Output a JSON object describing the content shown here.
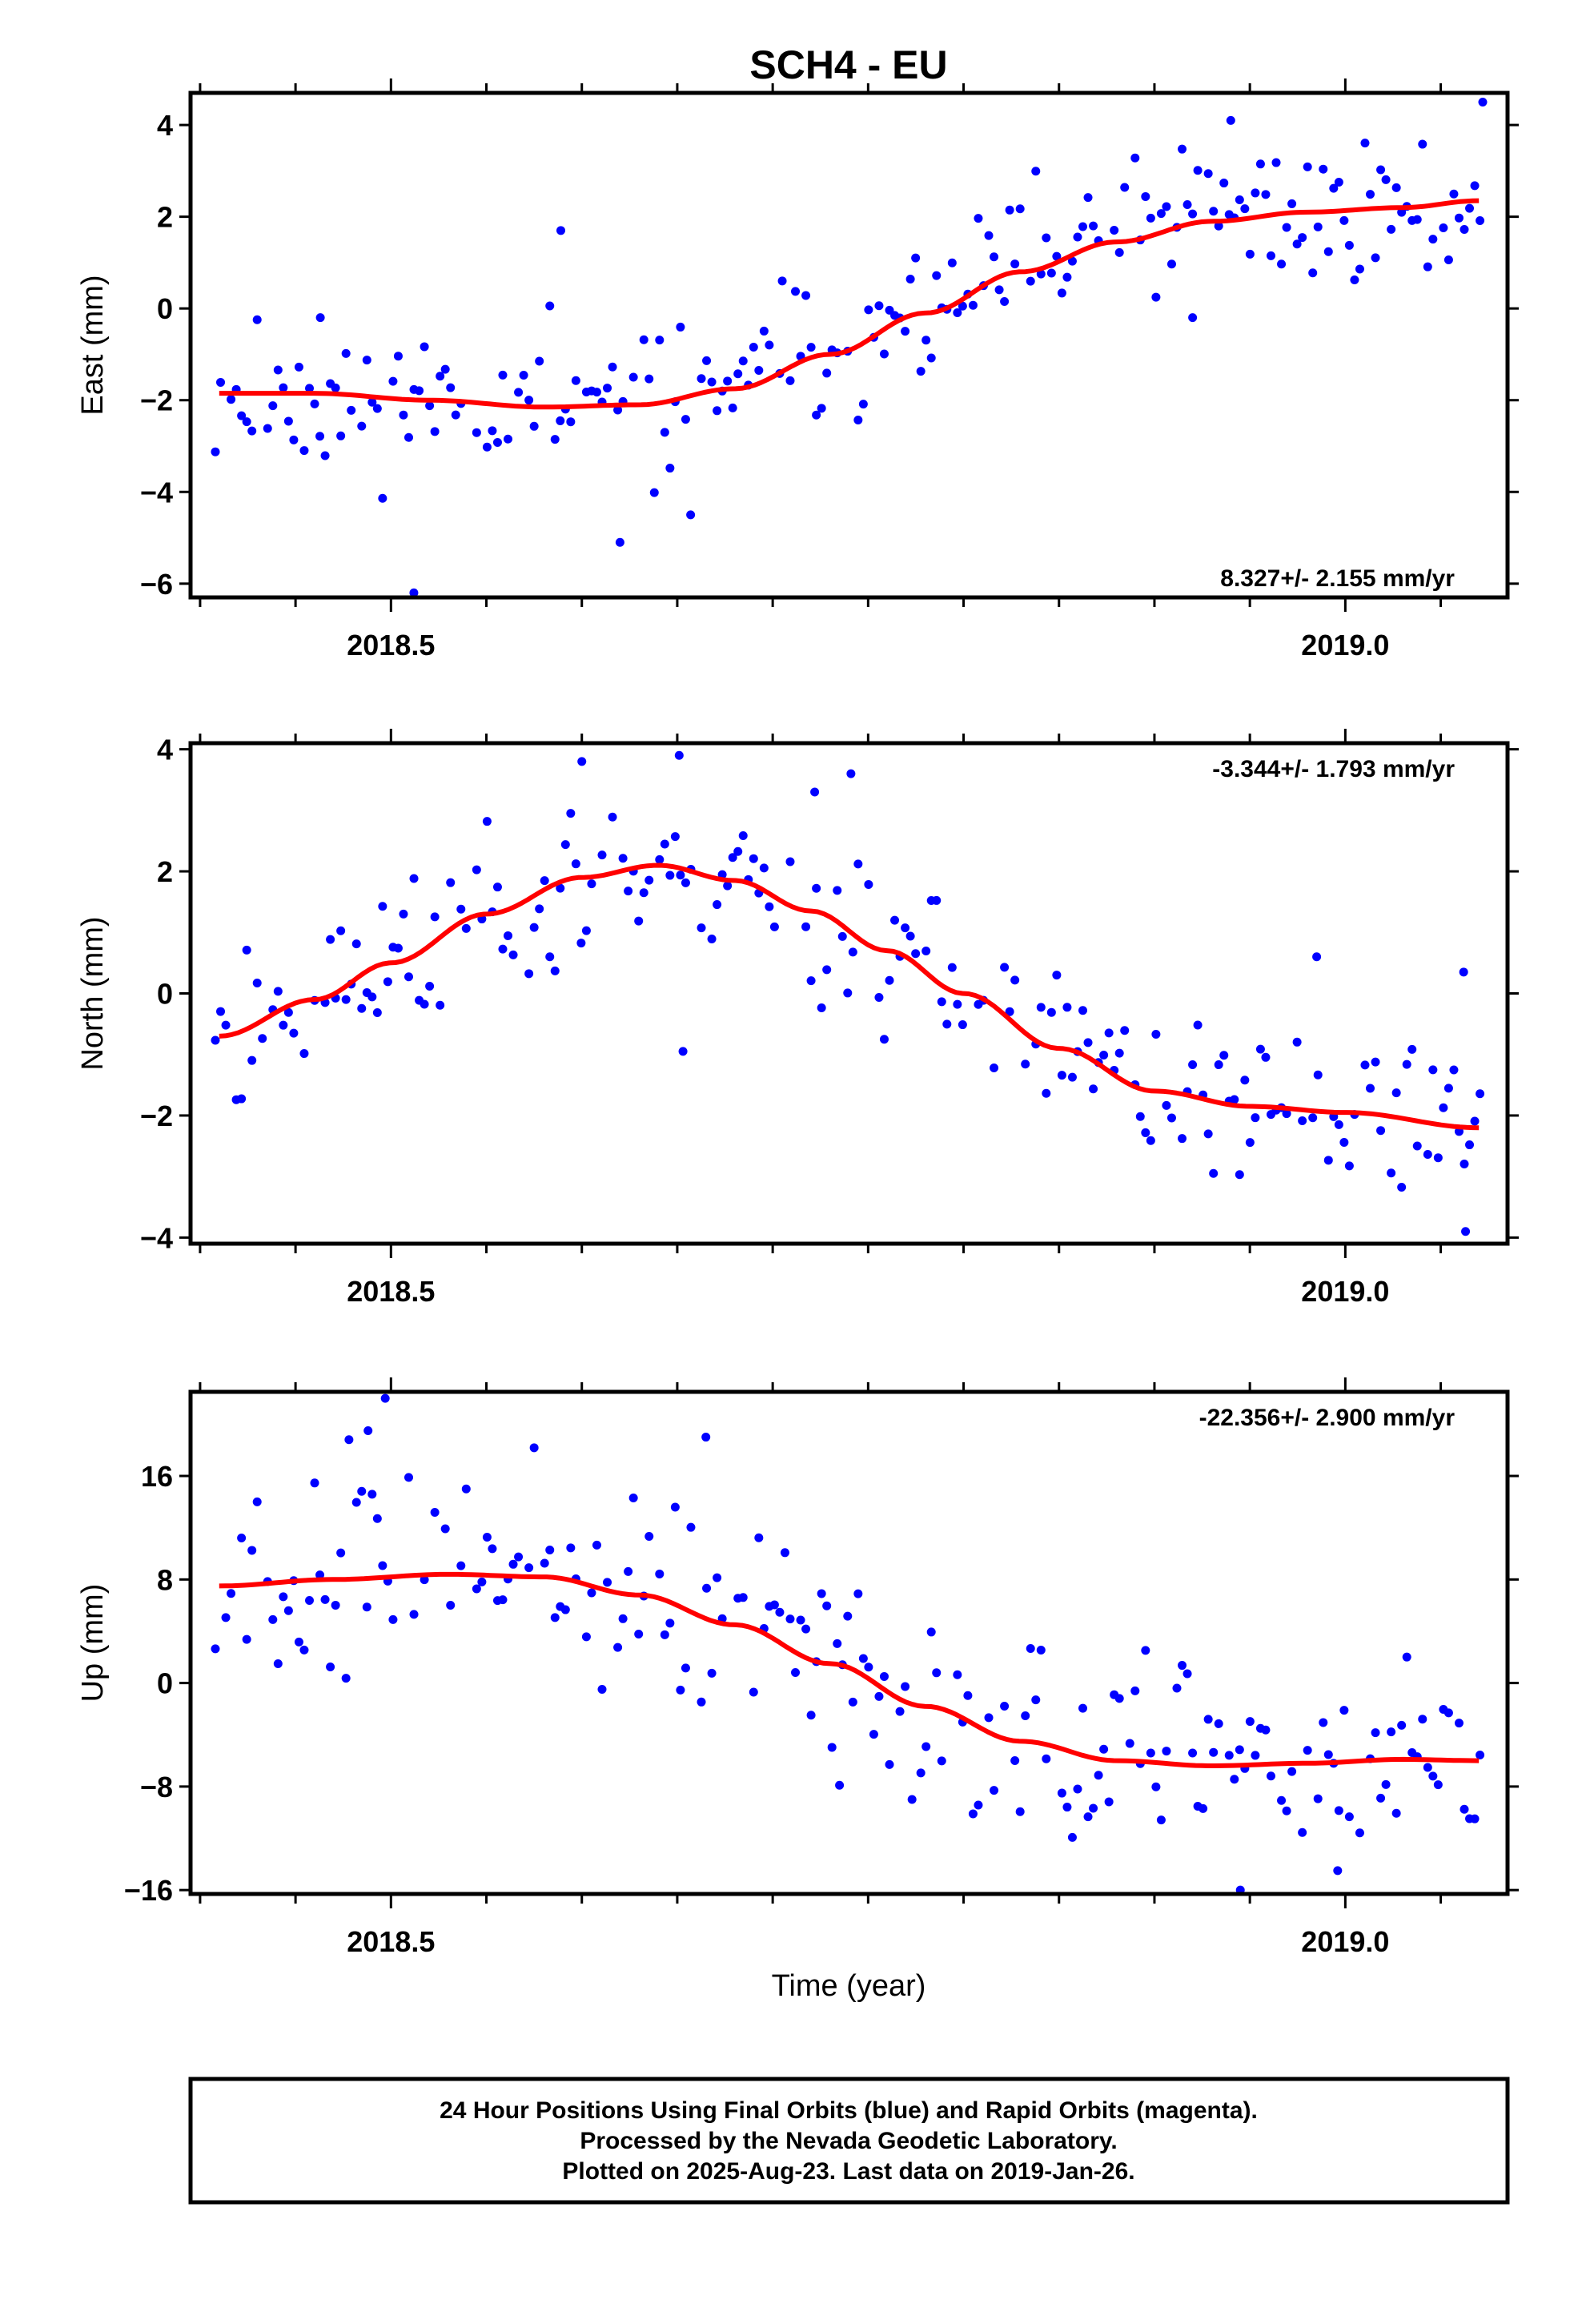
{
  "title": "SCH4 - EU",
  "xlabel": "Time (year)",
  "footer": {
    "line1": "24 Hour Positions Using Final Orbits (blue) and Rapid Orbits (magenta).",
    "line2": "Processed by the Nevada Geodetic Laboratory.",
    "line3": "Plotted on 2025-Aug-23. Last data on 2019-Jan-26."
  },
  "colors": {
    "points": "#0000ff",
    "fit": "#ff0000",
    "frame": "#000000"
  },
  "chart_data": [
    {
      "type": "scatter",
      "ylabel": "East (mm)",
      "rate_label": "8.327+/- 2.155 mm/yr",
      "xlim": [
        2018.395,
        2019.085
      ],
      "ylim": [
        -6.3,
        4.7
      ],
      "yticks": [
        -6,
        -4,
        -2,
        0,
        2,
        4
      ],
      "ytick_labels": [
        "−6",
        "−4",
        "−2",
        "0",
        "2",
        "4"
      ],
      "xtick_labels": [
        {
          "value": 2018.5,
          "label": "2018.5"
        },
        {
          "value": 2019.0,
          "label": "2019.0"
        }
      ],
      "fit": [
        [
          2018.41,
          -1.85
        ],
        [
          2018.46,
          -1.85
        ],
        [
          2018.52,
          -2.0
        ],
        [
          2018.58,
          -2.15
        ],
        [
          2018.63,
          -2.1
        ],
        [
          2018.68,
          -1.75
        ],
        [
          2018.73,
          -1.0
        ],
        [
          2018.78,
          -0.1
        ],
        [
          2018.83,
          0.8
        ],
        [
          2018.88,
          1.45
        ],
        [
          2018.93,
          1.9
        ],
        [
          2018.98,
          2.1
        ],
        [
          2019.03,
          2.2
        ],
        [
          2019.07,
          2.35
        ]
      ],
      "noise": 0.8,
      "seed": 11,
      "outliers": [
        [
          2018.512,
          -6.2
        ],
        [
          2018.62,
          -5.1
        ],
        [
          2018.657,
          -4.5
        ],
        [
          2018.589,
          1.7
        ],
        [
          2018.94,
          4.1
        ],
        [
          2019.072,
          4.5
        ],
        [
          2018.92,
          -0.2
        ],
        [
          2018.463,
          -0.2
        ],
        [
          2018.705,
          0.6
        ]
      ]
    },
    {
      "type": "scatter",
      "ylabel": "North (mm)",
      "rate_label": "-3.344+/- 1.793 mm/yr",
      "xlim": [
        2018.395,
        2019.085
      ],
      "ylim": [
        -4.1,
        4.1
      ],
      "yticks": [
        -4,
        -2,
        0,
        2,
        4
      ],
      "ytick_labels": [
        "−4",
        "−2",
        "0",
        "2",
        "4"
      ],
      "xtick_labels": [
        {
          "value": 2018.5,
          "label": "2018.5"
        },
        {
          "value": 2019.0,
          "label": "2019.0"
        }
      ],
      "fit": [
        [
          2018.41,
          -0.7
        ],
        [
          2018.46,
          -0.1
        ],
        [
          2018.5,
          0.5
        ],
        [
          2018.55,
          1.3
        ],
        [
          2018.6,
          1.9
        ],
        [
          2018.64,
          2.1
        ],
        [
          2018.68,
          1.85
        ],
        [
          2018.72,
          1.35
        ],
        [
          2018.76,
          0.7
        ],
        [
          2018.8,
          0.0
        ],
        [
          2018.85,
          -0.9
        ],
        [
          2018.9,
          -1.6
        ],
        [
          2018.95,
          -1.85
        ],
        [
          2019.0,
          -1.95
        ],
        [
          2019.07,
          -2.2
        ]
      ],
      "noise": 0.7,
      "seed": 23,
      "outliers": [
        [
          2018.651,
          3.9
        ],
        [
          2018.6,
          3.8
        ],
        [
          2018.722,
          3.3
        ],
        [
          2018.741,
          3.6
        ],
        [
          2019.063,
          -3.9
        ],
        [
          2018.653,
          -0.95
        ],
        [
          2018.985,
          0.6
        ],
        [
          2019.062,
          0.35
        ]
      ]
    },
    {
      "type": "scatter",
      "ylabel": "Up (mm)",
      "rate_label": "-22.356+/- 2.900 mm/yr",
      "xlim": [
        2018.395,
        2019.085
      ],
      "ylim": [
        -16.3,
        22.5
      ],
      "yticks": [
        -16,
        -8,
        0,
        8,
        16
      ],
      "ytick_labels": [
        "−16",
        "−8",
        "0",
        "8",
        "16"
      ],
      "xtick_labels": [
        {
          "value": 2018.5,
          "label": "2018.5"
        },
        {
          "value": 2019.0,
          "label": "2019.0"
        }
      ],
      "fit": [
        [
          2018.41,
          7.5
        ],
        [
          2018.47,
          8.0
        ],
        [
          2018.53,
          8.4
        ],
        [
          2018.58,
          8.2
        ],
        [
          2018.63,
          6.8
        ],
        [
          2018.68,
          4.5
        ],
        [
          2018.73,
          1.5
        ],
        [
          2018.78,
          -1.8
        ],
        [
          2018.83,
          -4.5
        ],
        [
          2018.88,
          -6.0
        ],
        [
          2018.93,
          -6.4
        ],
        [
          2018.98,
          -6.2
        ],
        [
          2019.03,
          -5.9
        ],
        [
          2019.07,
          -6.0
        ]
      ],
      "noise": 3.6,
      "seed": 37,
      "outliers": [
        [
          2018.497,
          22.0
        ],
        [
          2018.945,
          -16.0
        ],
        [
          2018.996,
          -14.5
        ],
        [
          2018.665,
          19.0
        ],
        [
          2018.488,
          19.5
        ],
        [
          2018.478,
          18.8
        ],
        [
          2018.773,
          -9.0
        ],
        [
          2018.735,
          -7.9
        ]
      ]
    }
  ]
}
